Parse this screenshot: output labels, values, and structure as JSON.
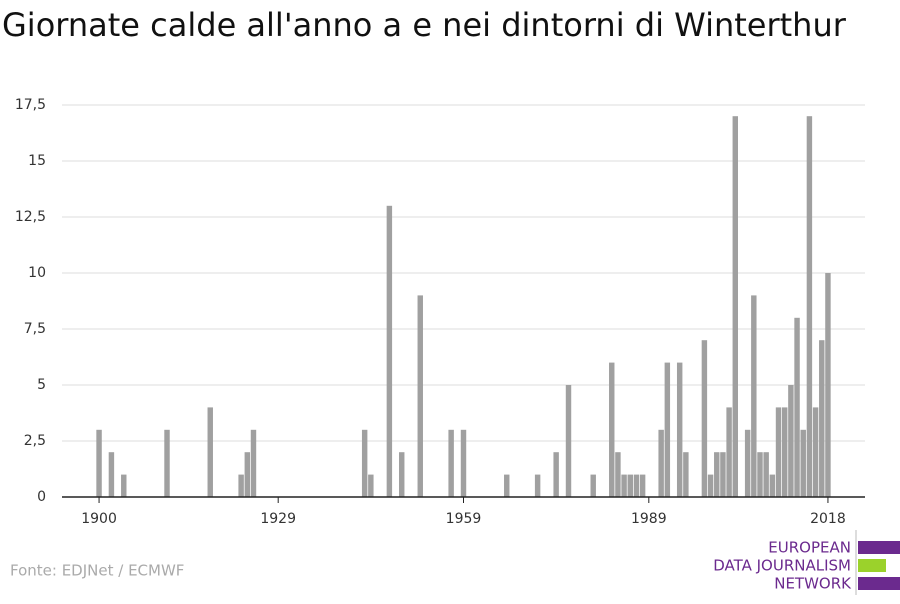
{
  "chart_data": {
    "type": "bar",
    "title": "Giornate calde all'anno a e nei dintorni di Winterthur",
    "source": "Fonte: EDJNet / ECMWF",
    "logo": [
      "EUROPEAN",
      "DATA JOURNALISM",
      "NETWORK"
    ],
    "x": [
      1900,
      1902,
      1904,
      1911,
      1918,
      1923,
      1924,
      1925,
      1943,
      1944,
      1947,
      1949,
      1952,
      1957,
      1959,
      1966,
      1971,
      1974,
      1976,
      1980,
      1983,
      1984,
      1985,
      1986,
      1987,
      1988,
      1991,
      1992,
      1994,
      1995,
      1998,
      1999,
      2000,
      2001,
      2002,
      2003,
      2005,
      2006,
      2007,
      2008,
      2009,
      2010,
      2011,
      2012,
      2013,
      2014,
      2015,
      2016,
      2017,
      2018
    ],
    "values": [
      3,
      2,
      1,
      3,
      4,
      1,
      2,
      3,
      3,
      1,
      13,
      2,
      9,
      3,
      3,
      1,
      1,
      2,
      5,
      1,
      6,
      2,
      1,
      1,
      1,
      1,
      3,
      6,
      6,
      2,
      7,
      1,
      2,
      2,
      4,
      17,
      3,
      9,
      2,
      2,
      1,
      4,
      4,
      5,
      8,
      3,
      17,
      4,
      7,
      10
    ],
    "color": "#a0a0a0",
    "xlim": [
      1894,
      2024
    ],
    "xticks": [
      1900,
      1929,
      1959,
      1989,
      2018
    ],
    "ylim": [
      0,
      17.5
    ],
    "yticks": [
      0,
      {
        "value": 2.5,
        "label": "2,5"
      },
      5,
      {
        "value": 7.5,
        "label": "7,5"
      },
      10,
      {
        "value": 12.5,
        "label": "12,5"
      },
      15,
      {
        "value": 17.5,
        "label": "17,5"
      }
    ],
    "grid": true
  }
}
